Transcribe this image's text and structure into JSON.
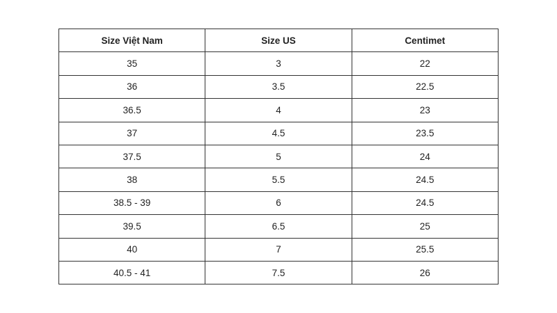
{
  "table": {
    "headers": [
      "Size Việt Nam",
      "Size US",
      "Centimet"
    ],
    "rows": [
      [
        "35",
        "3",
        "22"
      ],
      [
        "36",
        "3.5",
        "22.5"
      ],
      [
        "36.5",
        "4",
        "23"
      ],
      [
        "37",
        "4.5",
        "23.5"
      ],
      [
        "37.5",
        "5",
        "24"
      ],
      [
        "38",
        "5.5",
        "24.5"
      ],
      [
        "38.5 - 39",
        "6",
        "24.5"
      ],
      [
        "39.5",
        "6.5",
        "25"
      ],
      [
        "40",
        "7",
        "25.5"
      ],
      [
        "40.5 - 41",
        "7.5",
        "26"
      ]
    ]
  }
}
